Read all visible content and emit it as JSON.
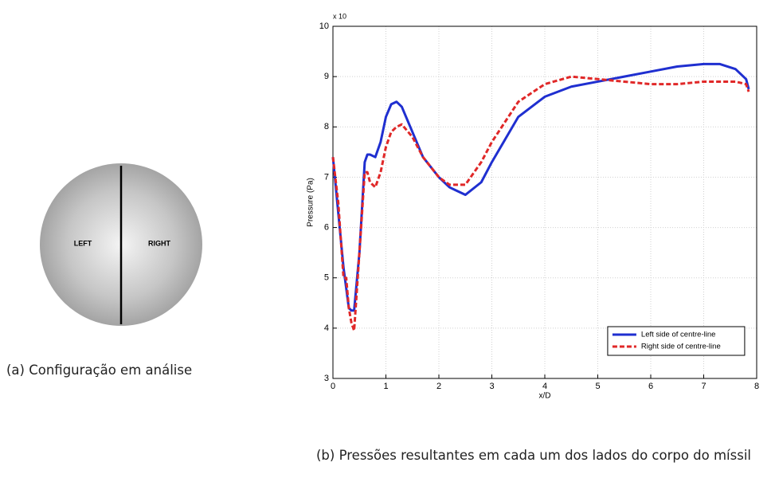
{
  "figure_a": {
    "caption": "(a) Configuração em análise",
    "left_label": "LEFT",
    "right_label": "RIGHT"
  },
  "figure_b": {
    "caption": "(b) Pressões resultantes em cada um dos lados do corpo do míssil"
  },
  "chart_data": {
    "type": "line",
    "y_multiplier": "x 10",
    "xlabel": "x/D",
    "ylabel": "Pressure (Pa)",
    "x": [
      0,
      0.1,
      0.2,
      0.25,
      0.3,
      0.35,
      0.4,
      0.5,
      0.6,
      0.65,
      0.7,
      0.8,
      0.9,
      1.0,
      1.1,
      1.2,
      1.3,
      1.5,
      1.7,
      2.0,
      2.2,
      2.3,
      2.5,
      2.8,
      3.0,
      3.5,
      4.0,
      4.5,
      5.0,
      5.5,
      6.0,
      6.5,
      7.0,
      7.3,
      7.6,
      7.8,
      7.85
    ],
    "series": [
      {
        "name": "Left side of centre-line",
        "color": "#1f2fd0",
        "dash": "solid",
        "values": [
          7.4,
          6.3,
          5.2,
          4.8,
          4.4,
          4.35,
          4.35,
          5.5,
          7.3,
          7.45,
          7.45,
          7.4,
          7.7,
          8.2,
          8.45,
          8.5,
          8.4,
          7.9,
          7.4,
          7.0,
          6.8,
          6.75,
          6.65,
          6.9,
          7.3,
          8.2,
          8.6,
          8.8,
          8.9,
          9.0,
          9.1,
          9.2,
          9.25,
          9.25,
          9.15,
          8.95,
          8.75
        ]
      },
      {
        "name": "Right side of centre-line",
        "color": "#e02828",
        "dash": "dashed",
        "values": [
          7.4,
          6.5,
          5.0,
          5.0,
          4.4,
          4.1,
          3.95,
          5.5,
          7.1,
          7.1,
          6.9,
          6.8,
          7.1,
          7.6,
          7.9,
          8.0,
          8.05,
          7.8,
          7.4,
          7.0,
          6.85,
          6.85,
          6.85,
          7.3,
          7.7,
          8.5,
          8.85,
          9.0,
          8.95,
          8.9,
          8.85,
          8.85,
          8.9,
          8.9,
          8.9,
          8.85,
          8.7
        ]
      }
    ],
    "xlim": [
      0,
      8
    ],
    "xticks": [
      0,
      1,
      2,
      3,
      4,
      5,
      6,
      7,
      8
    ],
    "ylim": [
      3,
      10
    ],
    "yticks": [
      3,
      4,
      5,
      6,
      7,
      8,
      9,
      10
    ],
    "grid": true,
    "legend": "lower right"
  }
}
